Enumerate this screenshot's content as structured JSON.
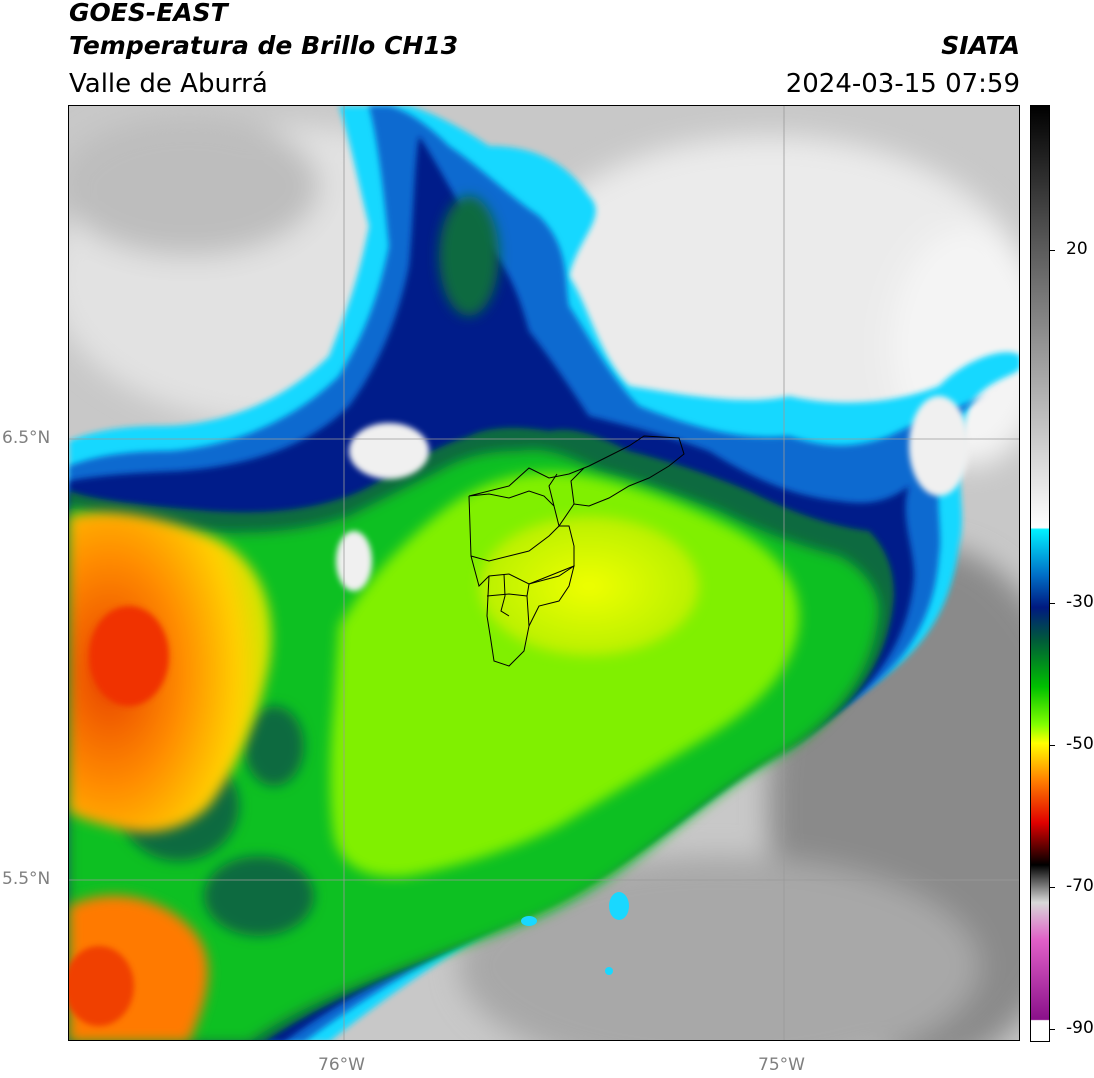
{
  "header": {
    "satellite": "GOES-EAST",
    "product": "Temperatura de Brillo CH13",
    "region": "Valle de Aburrá",
    "organization": "SIATA",
    "timestamp": "2024-03-15 07:59"
  },
  "map": {
    "lat_labels": [
      "6.5°N",
      "5.5°N"
    ],
    "lon_labels": [
      "76°W",
      "75°W"
    ],
    "gridline_color": "#9a9a9a",
    "boundary_color": "#000000"
  },
  "colorbar": {
    "tick_labels": [
      "20",
      "-30",
      "-50",
      "-70",
      "-90"
    ],
    "range": [
      -90,
      40
    ],
    "colors": {
      "magenta": "#c030c0",
      "black": "#000000",
      "red": "#e00000",
      "orange": "#ff7f00",
      "yellow": "#ffff00",
      "lime": "#80ff00",
      "green": "#00c000",
      "dark_green": "#005a3a",
      "navy": "#001a80",
      "blue": "#0060c0",
      "cyan": "#00e5ff",
      "white": "#ffffff",
      "gray": "#7a7a7a"
    }
  }
}
